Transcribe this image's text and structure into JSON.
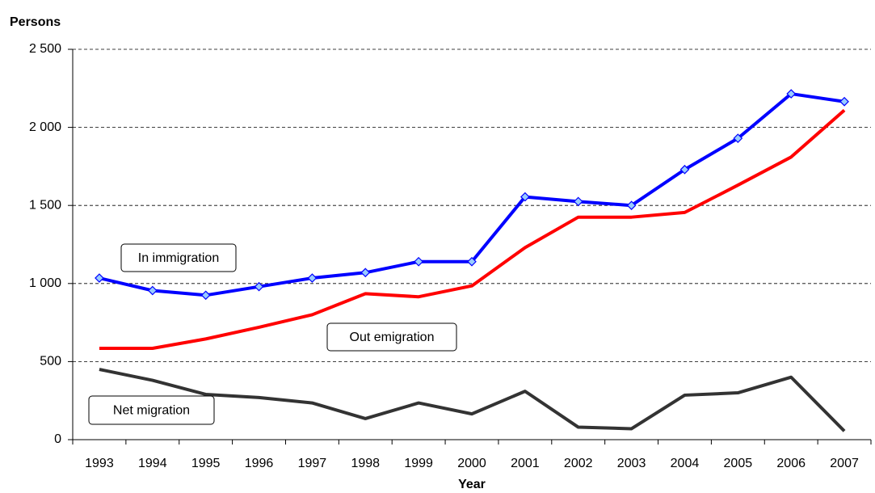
{
  "chart_data": {
    "type": "line",
    "y_axis_label": "Persons",
    "x_axis_label": "Year",
    "categories": [
      "1993",
      "1994",
      "1995",
      "1996",
      "1997",
      "1998",
      "1999",
      "2000",
      "2001",
      "2002",
      "2003",
      "2004",
      "2005",
      "2006",
      "2007"
    ],
    "series": [
      {
        "name": "In immigration",
        "color": "#0000ff",
        "marker": "diamond",
        "marker_fill": "#99ccff",
        "values": [
          1035,
          955,
          925,
          980,
          1035,
          1070,
          1140,
          1140,
          1555,
          1525,
          1500,
          1730,
          1930,
          2215,
          2165
        ]
      },
      {
        "name": "Out emigration",
        "color": "#ff0000",
        "values": [
          585,
          585,
          645,
          720,
          800,
          935,
          915,
          985,
          1230,
          1425,
          1425,
          1455,
          1630,
          1810,
          2110
        ]
      },
      {
        "name": "Net migration",
        "color": "#333333",
        "values": [
          450,
          380,
          290,
          270,
          235,
          135,
          235,
          165,
          310,
          80,
          70,
          285,
          300,
          400,
          55
        ]
      }
    ],
    "ylim": [
      0,
      2500
    ],
    "yticks": [
      0,
      {
        "value": 500,
        "label": "500"
      },
      {
        "value": 1000,
        "label": "1 000"
      },
      {
        "value": 1500,
        "label": "1 500"
      },
      {
        "value": 2000,
        "label": "2 000"
      },
      {
        "value": 2500,
        "label": "2 500"
      }
    ],
    "grid": true,
    "grid_style": "dashed"
  }
}
